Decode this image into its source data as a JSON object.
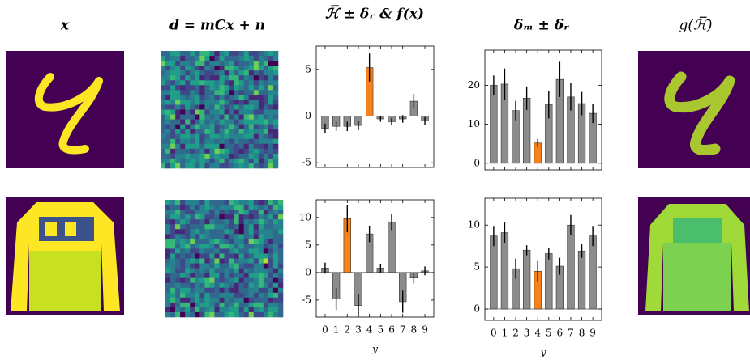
{
  "headers": [
    "x",
    "d = mCx + n",
    "ℋ̅ ± δᵣ & f(x)",
    "δₘ ± δᵣ",
    "g(ℋ̅)"
  ],
  "chart_data": [
    {
      "type": "bar",
      "values": [
        -1.3,
        -1.1,
        -1.1,
        -1.0,
        5.2,
        -0.3,
        -0.6,
        -0.3,
        1.6,
        -0.5
      ],
      "errors": [
        0.5,
        0.5,
        0.5,
        0.5,
        1.5,
        0.3,
        0.4,
        0.4,
        0.8,
        0.4
      ],
      "colors": [
        "#8c8c8c",
        "#8c8c8c",
        "#8c8c8c",
        "#8c8c8c",
        "#f5821f",
        "#8c8c8c",
        "#8c8c8c",
        "#8c8c8c",
        "#8c8c8c",
        "#8c8c8c"
      ],
      "ylim": [
        -5.5,
        7.5
      ],
      "yticks": [
        -5,
        0,
        5
      ]
    },
    {
      "type": "bar",
      "values": [
        20,
        20.3,
        13.5,
        16.7,
        5.2,
        15,
        21.5,
        17,
        15.3,
        12.8
      ],
      "errors": [
        2.5,
        4,
        2.5,
        3,
        1,
        3.5,
        4.5,
        3.5,
        3,
        2.5
      ],
      "colors": [
        "#8c8c8c",
        "#8c8c8c",
        "#8c8c8c",
        "#8c8c8c",
        "#f5821f",
        "#8c8c8c",
        "#8c8c8c",
        "#8c8c8c",
        "#8c8c8c",
        "#8c8c8c"
      ],
      "ylim": [
        -1.7,
        29
      ],
      "yticks": [
        0,
        10,
        20
      ]
    },
    {
      "type": "bar",
      "categories": [
        "0",
        "1",
        "2",
        "3",
        "4",
        "5",
        "6",
        "7",
        "8",
        "9"
      ],
      "xlabel": "y",
      "values": [
        0.8,
        -4.8,
        9.8,
        -6,
        7,
        0.8,
        9.2,
        -5.3,
        -1,
        0.3
      ],
      "errors": [
        1,
        2,
        2.5,
        2,
        1.5,
        0.8,
        1.5,
        2,
        1,
        0.8
      ],
      "colors": [
        "#8c8c8c",
        "#8c8c8c",
        "#f5821f",
        "#8c8c8c",
        "#8c8c8c",
        "#8c8c8c",
        "#8c8c8c",
        "#8c8c8c",
        "#8c8c8c",
        "#8c8c8c"
      ],
      "ylim": [
        -8.1,
        13.2
      ],
      "yticks": [
        -5,
        0,
        5,
        10
      ]
    },
    {
      "type": "bar",
      "categories": [
        "0",
        "1",
        "2",
        "3",
        "4",
        "5",
        "6",
        "7",
        "8",
        "9"
      ],
      "xlabel": "y",
      "values": [
        8.7,
        9.1,
        4.8,
        7,
        4.5,
        6.6,
        5.1,
        10,
        6.9,
        8.7
      ],
      "errors": [
        1.2,
        1.2,
        1.2,
        0.6,
        1.2,
        0.7,
        1,
        1.2,
        0.8,
        1.2
      ],
      "colors": [
        "#8c8c8c",
        "#8c8c8c",
        "#8c8c8c",
        "#8c8c8c",
        "#f5821f",
        "#8c8c8c",
        "#8c8c8c",
        "#8c8c8c",
        "#8c8c8c",
        "#8c8c8c"
      ],
      "ylim": [
        -1.35,
        13.2
      ],
      "yticks": [
        0,
        5,
        10
      ]
    }
  ]
}
